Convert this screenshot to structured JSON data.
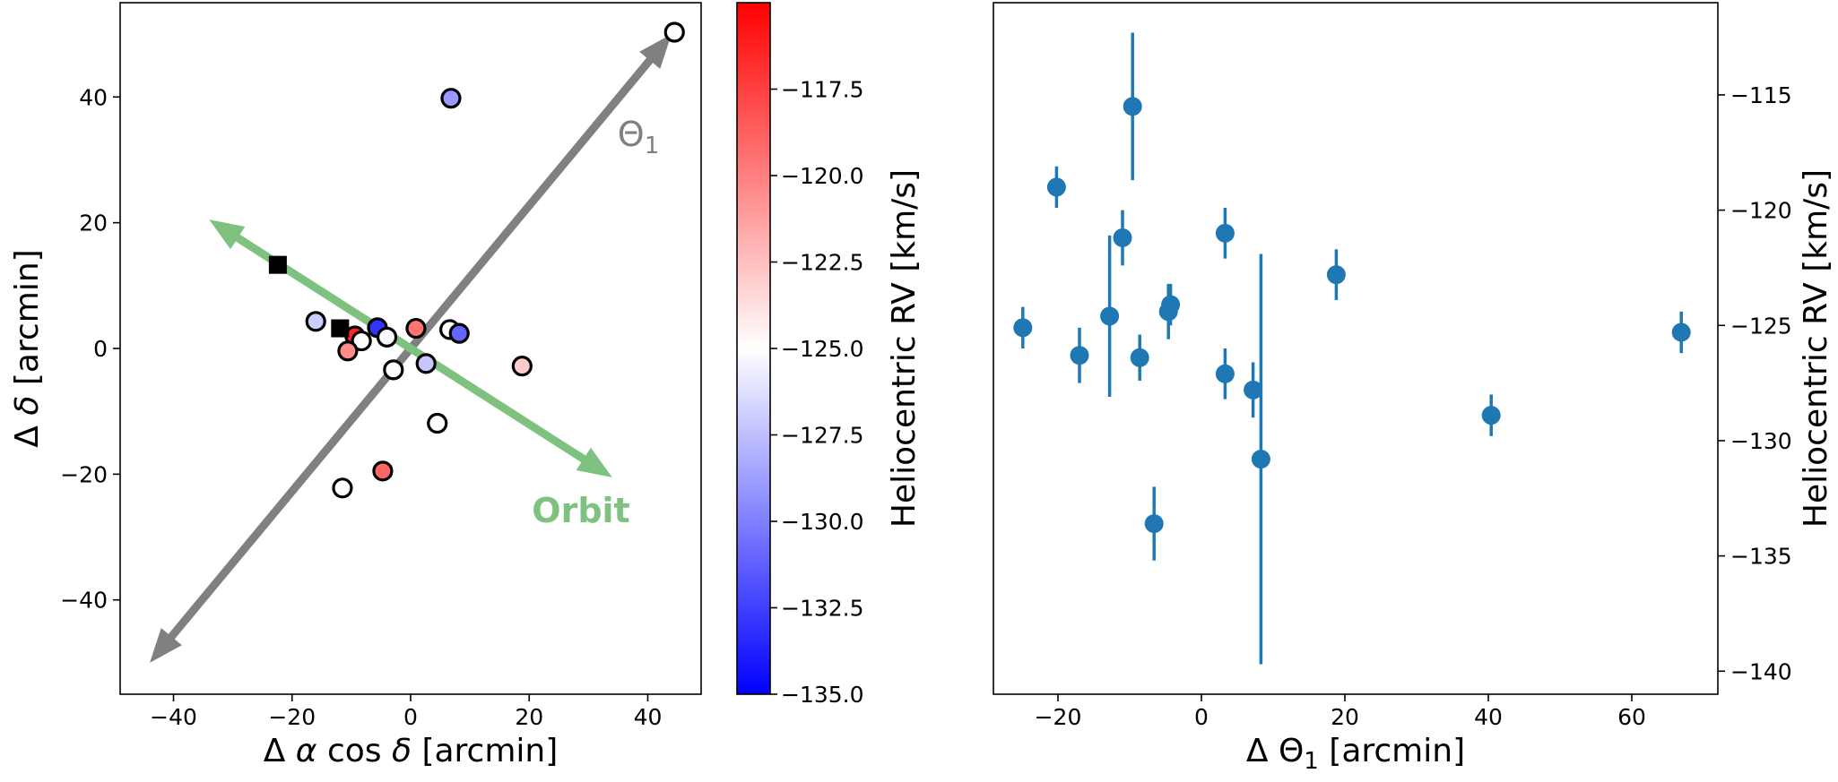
{
  "chart_data": [
    {
      "type": "scatter",
      "panel": "left",
      "xlabel": "Δ α cos δ [arcmin]",
      "ylabel": "Δ δ [arcmin]",
      "xlim": [
        -49,
        49
      ],
      "ylim": [
        -55,
        55
      ],
      "xticks": [
        {
          "value": -40,
          "label": "−40"
        },
        {
          "value": -20,
          "label": "−20"
        },
        {
          "value": 0,
          "label": "0"
        },
        {
          "value": 20,
          "label": "20"
        },
        {
          "value": 40,
          "label": "40"
        }
      ],
      "yticks": [
        {
          "value": -40,
          "label": "−40"
        },
        {
          "value": -20,
          "label": "−20"
        },
        {
          "value": 0,
          "label": "0"
        },
        {
          "value": 20,
          "label": "20"
        },
        {
          "value": 40,
          "label": "40"
        }
      ],
      "arrows": [
        {
          "name": "theta1-axis",
          "label": "Θ₁",
          "from": [
            -44,
            -50
          ],
          "to": [
            44,
            50
          ],
          "double": true,
          "color": "#808080"
        },
        {
          "name": "orbit-direction",
          "label": "Orbit",
          "from": [
            -34,
            20.5
          ],
          "to": [
            34,
            -20.5
          ],
          "double": true,
          "color": "#7fc27f"
        }
      ],
      "colorbar": {
        "label": "Heliocentric RV [km/s]",
        "vmin": -135.0,
        "vmax": -115.0,
        "cmap": "bwr",
        "ticks": [
          {
            "value": -117.5,
            "label": "−117.5"
          },
          {
            "value": -120.0,
            "label": "−120.0"
          },
          {
            "value": -122.5,
            "label": "−122.5"
          },
          {
            "value": -125.0,
            "label": "−125.0"
          },
          {
            "value": -127.5,
            "label": "−127.5"
          },
          {
            "value": -130.0,
            "label": "−130.0"
          },
          {
            "value": -132.5,
            "label": "−132.5"
          },
          {
            "value": -135.0,
            "label": "−135.0"
          }
        ]
      },
      "points": [
        {
          "x": 44.5,
          "y": 50.3,
          "rv": null
        },
        {
          "x": 6.8,
          "y": 39.8,
          "rv": -129.0
        },
        {
          "x": -16.0,
          "y": 4.3,
          "rv": -127.0
        },
        {
          "x": -5.6,
          "y": 3.3,
          "rv": -133.0
        },
        {
          "x": 0.9,
          "y": 3.2,
          "rv": -119.5
        },
        {
          "x": 6.6,
          "y": 3.0,
          "rv": -125.0
        },
        {
          "x": 8.2,
          "y": 2.4,
          "rv": -131.0
        },
        {
          "x": -9.4,
          "y": 2.0,
          "rv": -116.5
        },
        {
          "x": -4.0,
          "y": 1.8,
          "rv": -125.2
        },
        {
          "x": -8.3,
          "y": 1.2,
          "rv": -124.9
        },
        {
          "x": -10.6,
          "y": -0.4,
          "rv": -120.5
        },
        {
          "x": 2.6,
          "y": -2.4,
          "rv": -127.2
        },
        {
          "x": 18.8,
          "y": -2.8,
          "rv": -123.0
        },
        {
          "x": -2.9,
          "y": -3.4,
          "rv": -125.1
        },
        {
          "x": 4.5,
          "y": -11.9,
          "rv": -124.9
        },
        {
          "x": -4.7,
          "y": -19.5,
          "rv": -119.0
        },
        {
          "x": -11.5,
          "y": -22.2,
          "rv": -125.0
        }
      ],
      "squares": [
        {
          "x": -22.4,
          "y": 13.3
        },
        {
          "x": -11.9,
          "y": 3.2
        }
      ]
    },
    {
      "type": "scatter",
      "panel": "right",
      "xlabel": "Δ Θ₁ [arcmin]",
      "ylabel": "Heliocentric RV [km/s]",
      "xlim": [
        -29,
        72
      ],
      "ylim": [
        -141.0,
        -111.0
      ],
      "xticks": [
        {
          "value": -20,
          "label": "−20"
        },
        {
          "value": 0,
          "label": "0"
        },
        {
          "value": 20,
          "label": "20"
        },
        {
          "value": 40,
          "label": "40"
        },
        {
          "value": 60,
          "label": "60"
        }
      ],
      "yticks": [
        {
          "value": -115,
          "label": "−115"
        },
        {
          "value": -120,
          "label": "−120"
        },
        {
          "value": -125,
          "label": "−125"
        },
        {
          "value": -130,
          "label": "−130"
        },
        {
          "value": -135,
          "label": "−135"
        },
        {
          "value": -140,
          "label": "−140"
        }
      ],
      "marker_color": "#1f77b4",
      "points": [
        {
          "x": -24.9,
          "y": -125.1,
          "yerr": 0.9
        },
        {
          "x": -20.2,
          "y": -119.0,
          "yerr": 0.9
        },
        {
          "x": -17.0,
          "y": -126.3,
          "yerr": 1.2
        },
        {
          "x": -12.8,
          "y": -124.6,
          "yerr": 3.5
        },
        {
          "x": -11.0,
          "y": -121.2,
          "yerr": 1.2
        },
        {
          "x": -9.6,
          "y": -115.5,
          "yerr": 3.2
        },
        {
          "x": -8.6,
          "y": -126.4,
          "yerr": 1.0
        },
        {
          "x": -6.6,
          "y": -133.6,
          "yerr": 1.6
        },
        {
          "x": -4.6,
          "y": -124.4,
          "yerr": 1.2
        },
        {
          "x": -4.3,
          "y": -124.1,
          "yerr": 0.9
        },
        {
          "x": 3.3,
          "y": -121.0,
          "yerr": 1.1
        },
        {
          "x": 3.3,
          "y": -127.1,
          "yerr": 1.1
        },
        {
          "x": 7.2,
          "y": -127.8,
          "yerr": 1.2
        },
        {
          "x": 8.3,
          "y": -130.8,
          "yerr": 8.9
        },
        {
          "x": 18.8,
          "y": -122.8,
          "yerr": 1.1
        },
        {
          "x": 40.4,
          "y": -128.9,
          "yerr": 0.9
        },
        {
          "x": 66.9,
          "y": -125.3,
          "yerr": 0.9
        }
      ]
    }
  ]
}
